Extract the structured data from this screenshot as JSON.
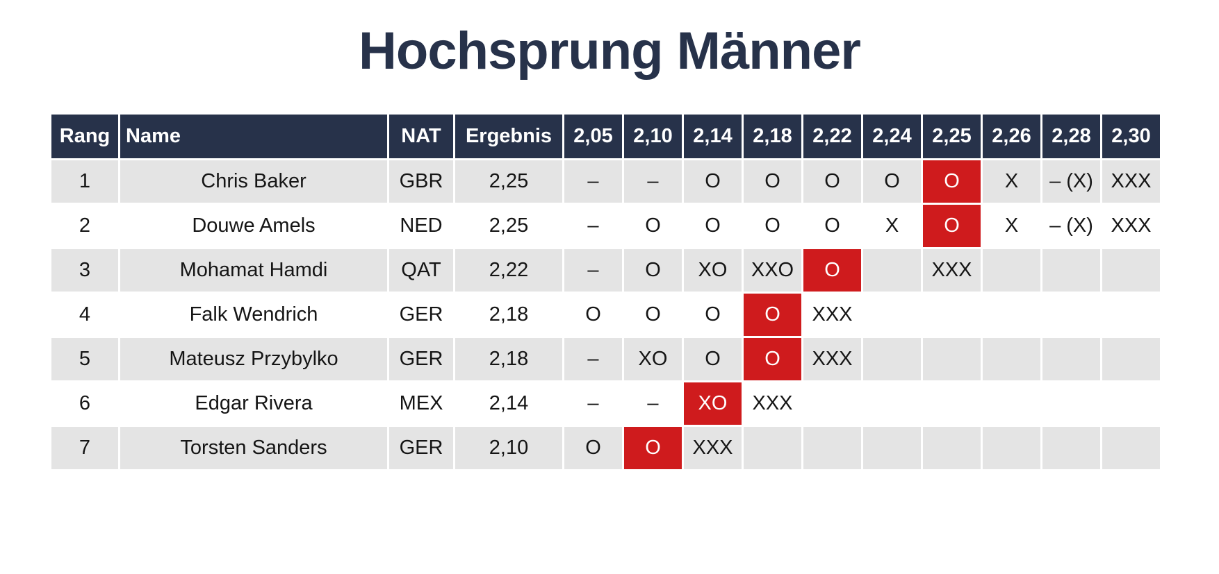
{
  "title": "Hochsprung Männer",
  "colors": {
    "header_bg": "#27324a",
    "highlight": "#cf1b1d",
    "row_alt": "#e4e4e4"
  },
  "columns": [
    "Rang",
    "Name",
    "NAT",
    "Ergebnis"
  ],
  "heights": [
    "2,05",
    "2,10",
    "2,14",
    "2,18",
    "2,22",
    "2,24",
    "2,25",
    "2,26",
    "2,28",
    "2,30"
  ],
  "rows": [
    {
      "rank": "1",
      "name": "Chris Baker",
      "nat": "GBR",
      "result": "2,25",
      "attempts": [
        "–",
        "–",
        "O",
        "O",
        "O",
        "O",
        "O",
        "X",
        "– (X)",
        "XXX"
      ],
      "best": 6,
      "blue": true
    },
    {
      "rank": "2",
      "name": "Douwe Amels",
      "nat": "NED",
      "result": "2,25",
      "attempts": [
        "–",
        "O",
        "O",
        "O",
        "O",
        "X",
        "O",
        "X",
        "– (X)",
        "XXX"
      ],
      "best": 6,
      "blue": true
    },
    {
      "rank": "3",
      "name": "Mohamat Hamdi",
      "nat": "QAT",
      "result": "2,22",
      "attempts": [
        "–",
        "O",
        "XO",
        "XXO",
        "O",
        "",
        "XXX",
        "",
        "",
        ""
      ],
      "best": 4,
      "blue": false
    },
    {
      "rank": "4",
      "name": "Falk Wendrich",
      "nat": "GER",
      "result": "2,18",
      "attempts": [
        "O",
        "O",
        "O",
        "O",
        "XXX",
        "",
        "",
        "",
        "",
        ""
      ],
      "best": 3,
      "blue": false
    },
    {
      "rank": "5",
      "name": "Mateusz Przybylko",
      "nat": "GER",
      "result": "2,18",
      "attempts": [
        "–",
        "XO",
        "O",
        "O",
        "XXX",
        "",
        "",
        "",
        "",
        ""
      ],
      "best": 3,
      "blue": false
    },
    {
      "rank": "6",
      "name": "Edgar Rivera",
      "nat": "MEX",
      "result": "2,14",
      "attempts": [
        "–",
        "–",
        "XO",
        "XXX",
        "",
        "",
        "",
        "",
        "",
        ""
      ],
      "best": 2,
      "blue": false
    },
    {
      "rank": "7",
      "name": "Torsten Sanders",
      "nat": "GER",
      "result": "2,10",
      "attempts": [
        "O",
        "O",
        "XXX",
        "",
        "",
        "",
        "",
        "",
        "",
        ""
      ],
      "best": 1,
      "blue": false
    }
  ]
}
